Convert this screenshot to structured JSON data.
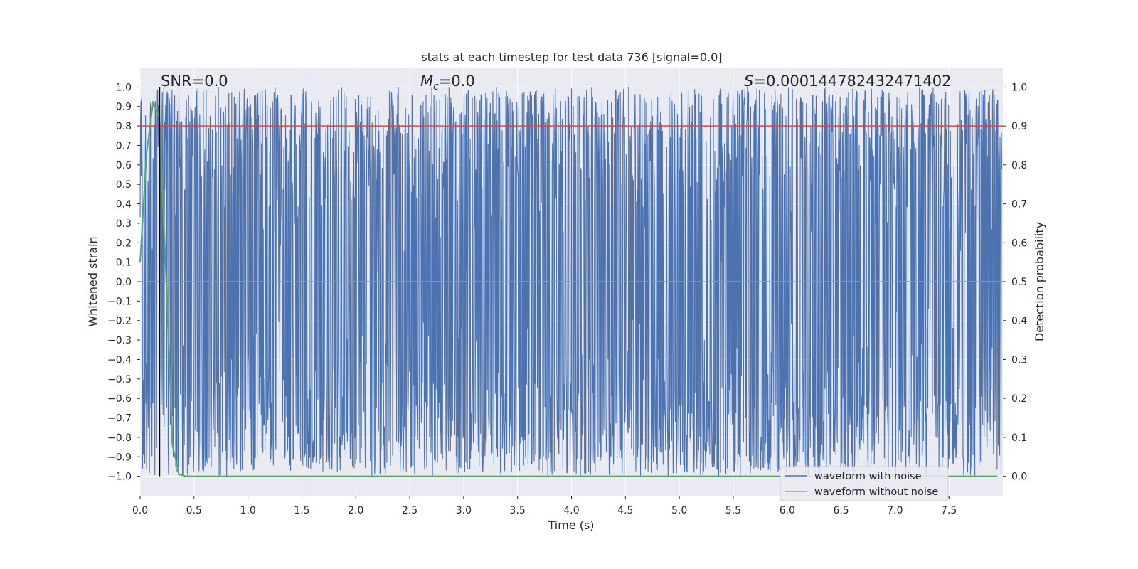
{
  "chart_data": {
    "type": "line",
    "title": "stats at each timestep for test data 736 [signal=0.0]",
    "xlabel": "Time (s)",
    "ylabel_left": "Whitened strain",
    "ylabel_right": "Detection probability",
    "xlim": [
      0.0,
      8.0
    ],
    "ylim_left": [
      -1.1,
      1.1
    ],
    "ylim_right": [
      -0.05,
      1.05
    ],
    "x_ticks": [
      "0.0",
      "0.5",
      "1.0",
      "1.5",
      "2.0",
      "2.5",
      "3.0",
      "3.5",
      "4.0",
      "4.5",
      "5.0",
      "5.5",
      "6.0",
      "6.5",
      "7.0",
      "7.5"
    ],
    "y_left_ticks": [
      "1.0",
      "0.9",
      "0.8",
      "0.7",
      "0.6",
      "0.5",
      "0.4",
      "0.3",
      "0.2",
      "0.1",
      "0.0",
      "−0.1",
      "−0.2",
      "−0.3",
      "−0.4",
      "−0.5",
      "−0.6",
      "−0.7",
      "−0.8",
      "−0.9",
      "−1.0"
    ],
    "y_right_ticks": [
      "1.0",
      "0.9",
      "0.8",
      "0.7",
      "0.6",
      "0.5",
      "0.4",
      "0.3",
      "0.2",
      "0.1",
      "0.0"
    ],
    "grid": true,
    "legend_position": "lower-right",
    "annotations": {
      "snr": "SNR=0.0",
      "mc_symbol": "M",
      "mc_sub": "c",
      "mc_value": "=0.0",
      "s_symbol": "S",
      "s_value": "=0.000144782432471402"
    },
    "marker_x": 0.18,
    "threshold_probability": 0.9,
    "series": [
      {
        "name": "waveform with noise",
        "color": "#4c72b0",
        "description_range": [
          -1.0,
          1.0
        ],
        "note": "dense noise spanning nearly full range"
      },
      {
        "name": "waveform without noise",
        "color": "#dd8452",
        "values_constant": 0.0
      },
      {
        "axis": "right",
        "color": "#55a868",
        "x": [
          0.0,
          0.06,
          0.12,
          0.18,
          0.24,
          0.3,
          0.36,
          0.42,
          1.0,
          2.0,
          3.0,
          4.0,
          5.0,
          6.0,
          7.0,
          7.95
        ],
        "values": [
          0.55,
          0.83,
          0.96,
          0.92,
          0.52,
          0.08,
          0.005,
          0.0,
          0.0,
          0.0,
          0.0,
          0.0,
          0.0,
          0.0,
          0.0,
          0.0
        ]
      }
    ],
    "colors": {
      "plot_background": "#eaeaf2",
      "grid": "#ffffff",
      "threshold_line": "#c44e52",
      "marker_line": "#000000"
    }
  }
}
